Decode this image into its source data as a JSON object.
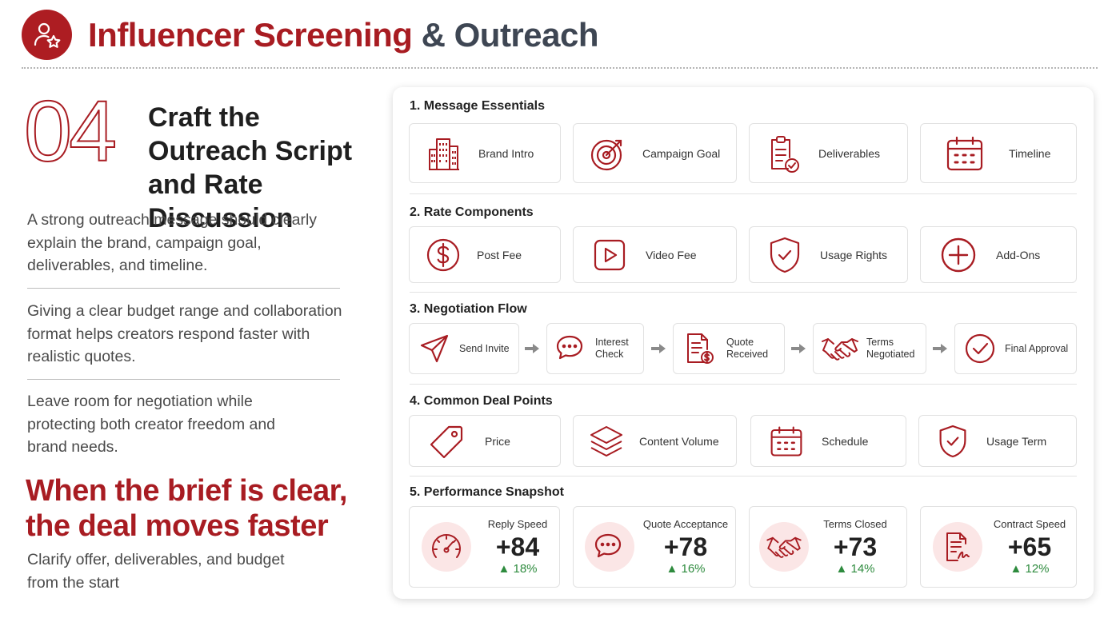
{
  "header": {
    "title_part1": "Influencer Screening",
    "title_part2": "& Outreach",
    "logo_icon": "user-star-icon"
  },
  "step": {
    "number": "04",
    "title": "Craft the Outreach Script and Rate Discussion"
  },
  "paragraphs": [
    "A strong outreach message should clearly explain the brand, campaign goal, deliverables, and timeline.",
    "Giving a clear budget range and collaboration format helps creators respond faster with realistic quotes.",
    "Leave room for negotiation while protecting both creator freedom and brand needs."
  ],
  "tagline": {
    "line1": "When the brief is clear,",
    "line2": "the deal moves faster"
  },
  "subline": "Clarify offer, deliverables, and budget from the start",
  "colors": {
    "accent": "#a81c22",
    "positive": "#2e8b3e"
  },
  "sections": {
    "essentials": {
      "title": "1. Message Essentials",
      "items": [
        {
          "label": "Brand Intro",
          "icon": "building-icon"
        },
        {
          "label": "Campaign Goal",
          "icon": "target-icon"
        },
        {
          "label": "Deliverables",
          "icon": "clipboard-check-icon"
        },
        {
          "label": "Timeline",
          "icon": "calendar-icon"
        }
      ]
    },
    "rates": {
      "title": "2. Rate Components",
      "items": [
        {
          "label": "Post Fee",
          "icon": "dollar-icon"
        },
        {
          "label": "Video Fee",
          "icon": "play-icon"
        },
        {
          "label": "Usage Rights",
          "icon": "shield-check-icon"
        },
        {
          "label": "Add-Ons",
          "icon": "plus-circle-icon"
        }
      ]
    },
    "flow": {
      "title": "3. Negotiation Flow",
      "items": [
        {
          "label1": "Send Invite",
          "label2": "",
          "icon": "send-icon"
        },
        {
          "label1": "Interest",
          "label2": "Check",
          "icon": "chat-icon"
        },
        {
          "label1": "Quote",
          "label2": "Received",
          "icon": "invoice-icon"
        },
        {
          "label1": "Terms",
          "label2": "Negotiated",
          "icon": "handshake-icon"
        },
        {
          "label1": "Final Approval",
          "label2": "",
          "icon": "check-circle-icon"
        }
      ]
    },
    "deal": {
      "title": "4. Common Deal Points",
      "items": [
        {
          "label": "Price",
          "icon": "tag-icon"
        },
        {
          "label": "Content Volume",
          "icon": "layers-icon"
        },
        {
          "label": "Schedule",
          "icon": "calendar-icon"
        },
        {
          "label": "Usage Term",
          "icon": "shield-check-icon"
        }
      ]
    },
    "performance": {
      "title": "5. Performance Snapshot",
      "items": [
        {
          "label": "Reply Speed",
          "value": "+84",
          "delta": "▲ 18%",
          "icon": "speedometer-icon"
        },
        {
          "label": "Quote Acceptance",
          "value": "+78",
          "delta": "▲ 16%",
          "icon": "chat-icon"
        },
        {
          "label": "Terms Closed",
          "value": "+73",
          "delta": "▲ 14%",
          "icon": "handshake-icon"
        },
        {
          "label": "Contract Speed",
          "value": "+65",
          "delta": "▲ 12%",
          "icon": "contract-icon"
        }
      ]
    }
  }
}
